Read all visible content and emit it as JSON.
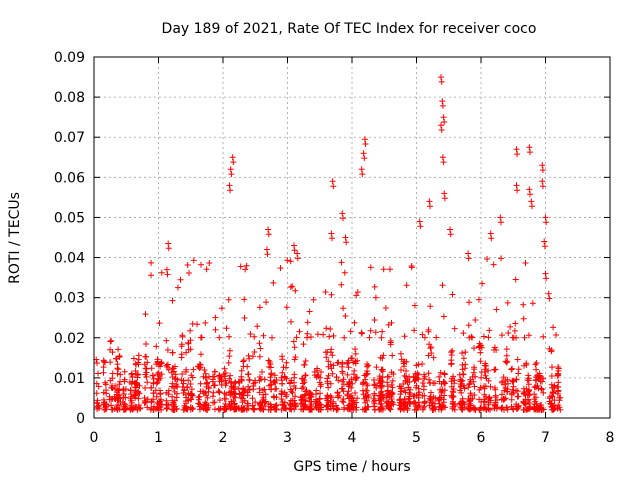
{
  "chart_data": {
    "type": "scatter",
    "title": "Day 189 of 2021, Rate Of TEC Index for receiver coco",
    "xlabel": "GPS time / hours",
    "ylabel": "ROTI / TECUs",
    "xlim": [
      0,
      8
    ],
    "ylim": [
      0,
      0.09
    ],
    "x_ticks": [
      0,
      1,
      2,
      3,
      4,
      5,
      6,
      7,
      8
    ],
    "x_tick_labels": [
      "0",
      "1",
      "2",
      "3",
      "4",
      "5",
      "6",
      "7",
      "8"
    ],
    "y_ticks": [
      0,
      0.01,
      0.02,
      0.03,
      0.04,
      0.05,
      0.06,
      0.07,
      0.08,
      0.09
    ],
    "y_tick_labels": [
      "0",
      "0.01",
      "0.02",
      "0.03",
      "0.04",
      "0.05",
      "0.06",
      "0.07",
      "0.08",
      "0.09"
    ],
    "grid": true,
    "marker": "+",
    "marker_color": "#ff0000",
    "series": [
      {
        "name": "ROTI",
        "data_x_range": [
          0.05,
          7.25
        ],
        "typical_band": [
          0.002,
          0.02
        ],
        "notable_points": [
          {
            "x": 1.15,
            "y": 0.0435
          },
          {
            "x": 1.13,
            "y": 0.037
          },
          {
            "x": 2.15,
            "y": 0.065
          },
          {
            "x": 2.12,
            "y": 0.062
          },
          {
            "x": 2.1,
            "y": 0.058
          },
          {
            "x": 2.7,
            "y": 0.047
          },
          {
            "x": 2.68,
            "y": 0.042
          },
          {
            "x": 3.1,
            "y": 0.043
          },
          {
            "x": 3.15,
            "y": 0.041
          },
          {
            "x": 3.7,
            "y": 0.059
          },
          {
            "x": 3.68,
            "y": 0.046
          },
          {
            "x": 3.85,
            "y": 0.051
          },
          {
            "x": 3.9,
            "y": 0.045
          },
          {
            "x": 4.2,
            "y": 0.0695
          },
          {
            "x": 4.18,
            "y": 0.066
          },
          {
            "x": 4.15,
            "y": 0.062
          },
          {
            "x": 5.2,
            "y": 0.054
          },
          {
            "x": 5.05,
            "y": 0.049
          },
          {
            "x": 5.38,
            "y": 0.085
          },
          {
            "x": 5.4,
            "y": 0.079
          },
          {
            "x": 5.42,
            "y": 0.075
          },
          {
            "x": 5.38,
            "y": 0.073
          },
          {
            "x": 5.41,
            "y": 0.065
          },
          {
            "x": 5.43,
            "y": 0.056
          },
          {
            "x": 5.52,
            "y": 0.047
          },
          {
            "x": 5.8,
            "y": 0.041
          },
          {
            "x": 6.15,
            "y": 0.046
          },
          {
            "x": 6.3,
            "y": 0.05
          },
          {
            "x": 6.55,
            "y": 0.067
          },
          {
            "x": 6.55,
            "y": 0.058
          },
          {
            "x": 6.75,
            "y": 0.0675
          },
          {
            "x": 6.75,
            "y": 0.057
          },
          {
            "x": 6.78,
            "y": 0.054
          },
          {
            "x": 6.95,
            "y": 0.063
          },
          {
            "x": 6.95,
            "y": 0.059
          },
          {
            "x": 7.0,
            "y": 0.05
          },
          {
            "x": 6.98,
            "y": 0.044
          },
          {
            "x": 7.0,
            "y": 0.036
          },
          {
            "x": 7.05,
            "y": 0.031
          }
        ]
      }
    ]
  }
}
